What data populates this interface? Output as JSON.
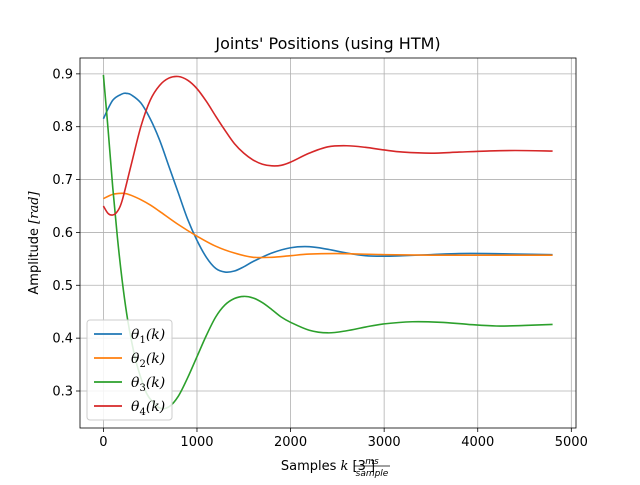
{
  "chart_data": {
    "type": "line",
    "title": "Joints' Positions (using HTM)",
    "xlabel": {
      "prefix": "Samples ",
      "var": "k",
      "bracket_open": " [3 ",
      "frac_num": "ms",
      "frac_den": "sample",
      "bracket_close": "]"
    },
    "ylabel": {
      "text": "Amplitude ",
      "unit": "[rad]"
    },
    "xlim": [
      -250,
      5050
    ],
    "ylim": [
      0.23,
      0.93
    ],
    "xticks": [
      0,
      1000,
      2000,
      3000,
      4000,
      5000
    ],
    "xtick_labels": [
      "0",
      "1000",
      "2000",
      "3000",
      "4000",
      "5000"
    ],
    "yticks": [
      0.3,
      0.4,
      0.5,
      0.6,
      0.7,
      0.8,
      0.9
    ],
    "ytick_labels": [
      "0.3",
      "0.4",
      "0.5",
      "0.6",
      "0.7",
      "0.8",
      "0.9"
    ],
    "grid": true,
    "legend_position": "lower-left",
    "series": [
      {
        "name": "θ1(k)",
        "legend_base": "θ",
        "legend_sub": "1",
        "legend_tail": "(k)",
        "color": "#1f77b4",
        "x": [
          0,
          100,
          200,
          250,
          300,
          400,
          500,
          600,
          700,
          800,
          900,
          1000,
          1100,
          1200,
          1300,
          1400,
          1500,
          1600,
          1800,
          2000,
          2200,
          2400,
          2600,
          2800,
          3000,
          3200,
          3500,
          3800,
          4100,
          4400,
          4800
        ],
        "y": [
          0.815,
          0.85,
          0.862,
          0.863,
          0.86,
          0.845,
          0.815,
          0.775,
          0.725,
          0.675,
          0.625,
          0.585,
          0.553,
          0.532,
          0.525,
          0.527,
          0.535,
          0.545,
          0.561,
          0.571,
          0.573,
          0.568,
          0.561,
          0.556,
          0.555,
          0.556,
          0.558,
          0.56,
          0.56,
          0.559,
          0.558
        ]
      },
      {
        "name": "θ2(k)",
        "legend_base": "θ",
        "legend_sub": "2",
        "legend_tail": "(k)",
        "color": "#ff7f0e",
        "x": [
          0,
          100,
          200,
          250,
          300,
          400,
          500,
          600,
          800,
          1000,
          1200,
          1400,
          1600,
          1800,
          2000,
          2200,
          2500,
          3000,
          3500,
          4000,
          4800
        ],
        "y": [
          0.664,
          0.672,
          0.674,
          0.673,
          0.67,
          0.662,
          0.652,
          0.64,
          0.615,
          0.593,
          0.574,
          0.561,
          0.553,
          0.553,
          0.556,
          0.559,
          0.56,
          0.558,
          0.557,
          0.557,
          0.557
        ]
      },
      {
        "name": "θ3(k)",
        "legend_base": "θ",
        "legend_sub": "3",
        "legend_tail": "(k)",
        "color": "#2ca02c",
        "x": [
          0,
          50,
          100,
          150,
          200,
          250,
          300,
          350,
          400,
          450,
          500,
          600,
          700,
          800,
          900,
          1000,
          1100,
          1200,
          1300,
          1400,
          1500,
          1600,
          1700,
          1800,
          1900,
          2000,
          2200,
          2400,
          2600,
          2800,
          3000,
          3300,
          3600,
          3900,
          4200,
          4500,
          4800
        ],
        "y": [
          0.898,
          0.795,
          0.685,
          0.59,
          0.51,
          0.445,
          0.395,
          0.355,
          0.325,
          0.3,
          0.285,
          0.268,
          0.27,
          0.29,
          0.325,
          0.365,
          0.405,
          0.44,
          0.463,
          0.475,
          0.479,
          0.476,
          0.467,
          0.454,
          0.44,
          0.43,
          0.415,
          0.41,
          0.414,
          0.421,
          0.427,
          0.431,
          0.43,
          0.426,
          0.423,
          0.424,
          0.426
        ]
      },
      {
        "name": "θ4(k)",
        "legend_base": "θ",
        "legend_sub": "4",
        "legend_tail": "(k)",
        "color": "#d62728",
        "x": [
          0,
          50,
          100,
          150,
          200,
          300,
          400,
          500,
          600,
          700,
          800,
          900,
          1000,
          1100,
          1200,
          1300,
          1400,
          1500,
          1600,
          1700,
          1800,
          1900,
          2000,
          2200,
          2400,
          2600,
          2800,
          3000,
          3200,
          3500,
          3800,
          4100,
          4400,
          4800
        ],
        "y": [
          0.65,
          0.636,
          0.633,
          0.64,
          0.66,
          0.73,
          0.8,
          0.85,
          0.878,
          0.892,
          0.895,
          0.888,
          0.872,
          0.848,
          0.82,
          0.793,
          0.768,
          0.75,
          0.737,
          0.729,
          0.726,
          0.727,
          0.733,
          0.75,
          0.762,
          0.764,
          0.761,
          0.756,
          0.752,
          0.75,
          0.752,
          0.754,
          0.755,
          0.754
        ]
      }
    ]
  }
}
